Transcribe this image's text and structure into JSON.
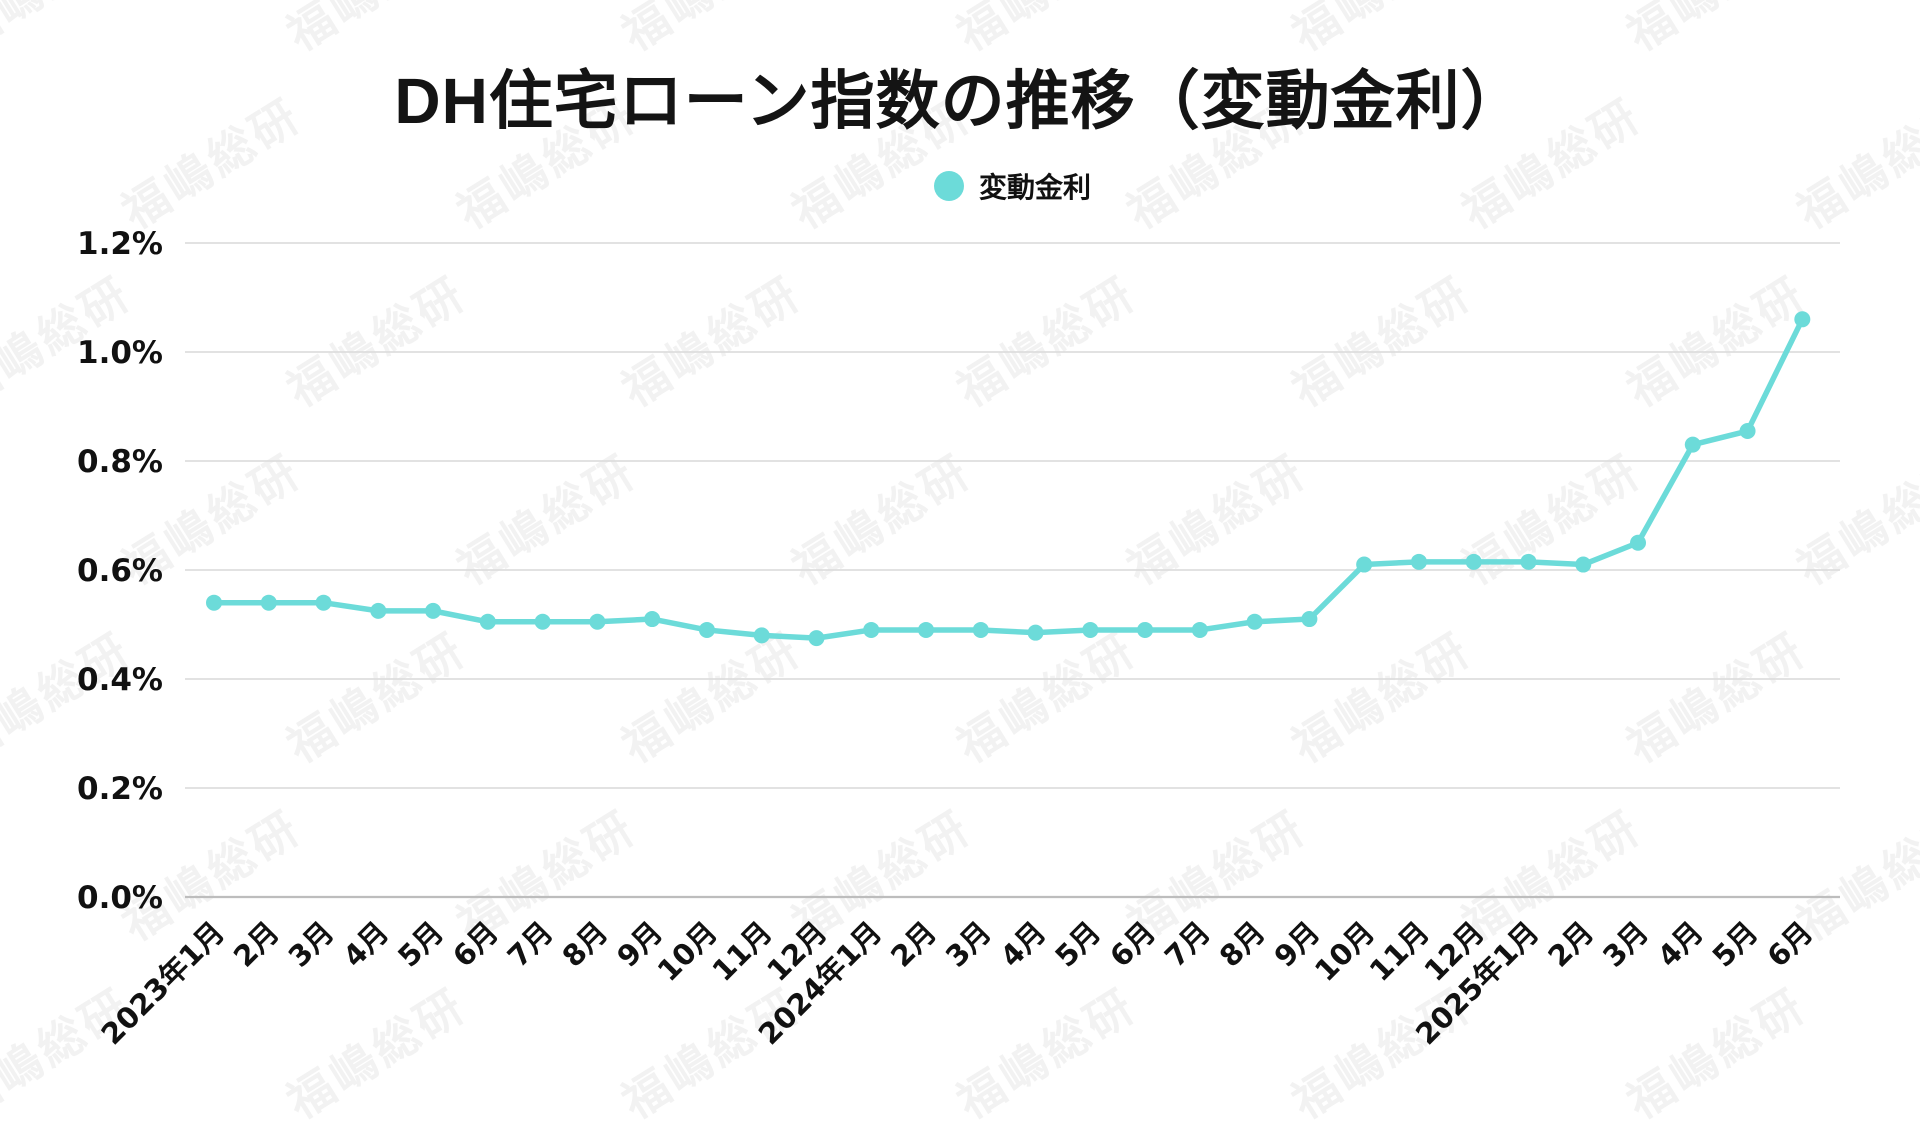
{
  "title": "DH住宅ローン指数の推移（変動金利）",
  "watermark_text": "福嶋総研",
  "legend": {
    "label": "変動金利",
    "color": "#6CDBD9"
  },
  "colors": {
    "series": "#6CDBD9",
    "gridline": "#d9d9d9",
    "baseline": "#bdbdbd",
    "text": "#111111"
  },
  "chart_data": {
    "type": "line",
    "title": "DH住宅ローン指数の推移（変動金利）",
    "xlabel": "",
    "ylabel": "",
    "grid": "horizontal-only",
    "legend_position": "top-center",
    "ylim": [
      0.0,
      1.2
    ],
    "ytick_values": [
      0.0,
      0.2,
      0.4,
      0.6,
      0.8,
      1.0,
      1.2
    ],
    "ytick_labels": [
      "0.0%",
      "0.2%",
      "0.4%",
      "0.6%",
      "0.8%",
      "1.0%",
      "1.2%"
    ],
    "categories": [
      "2023年1月",
      "2月",
      "3月",
      "4月",
      "5月",
      "6月",
      "7月",
      "8月",
      "9月",
      "10月",
      "11月",
      "12月",
      "2024年1月",
      "2月",
      "3月",
      "4月",
      "5月",
      "6月",
      "7月",
      "8月",
      "9月",
      "10月",
      "11月",
      "12月",
      "2025年1月",
      "2月",
      "3月",
      "4月",
      "5月",
      "6月"
    ],
    "series": [
      {
        "name": "変動金利",
        "unit": "%",
        "values": [
          0.54,
          0.54,
          0.54,
          0.525,
          0.525,
          0.505,
          0.505,
          0.505,
          0.51,
          0.49,
          0.48,
          0.475,
          0.49,
          0.49,
          0.49,
          0.485,
          0.49,
          0.49,
          0.49,
          0.505,
          0.51,
          0.61,
          0.615,
          0.615,
          0.615,
          0.61,
          0.65,
          0.83,
          0.855,
          1.06
        ]
      }
    ]
  }
}
